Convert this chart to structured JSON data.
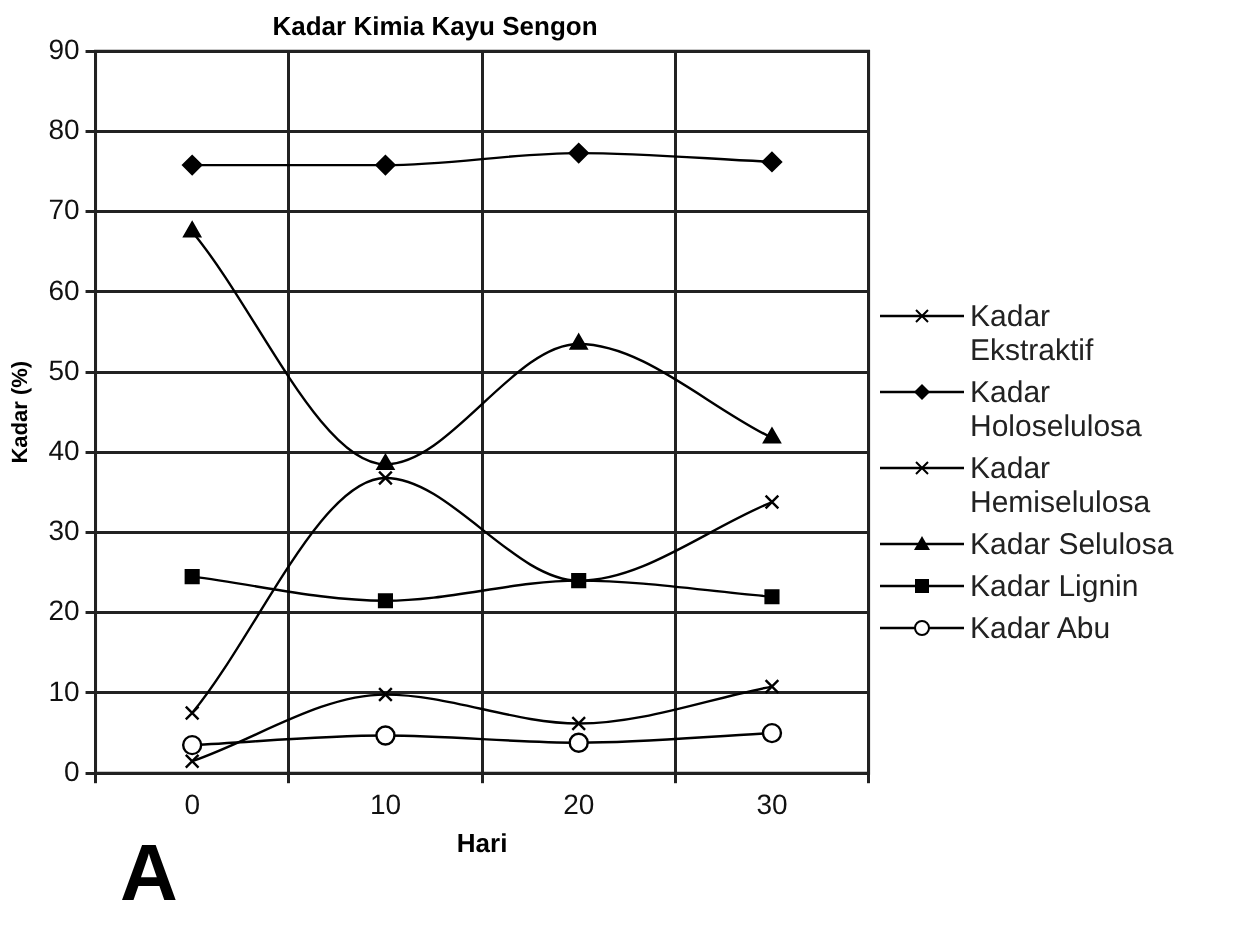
{
  "chart_data": {
    "type": "line",
    "title": "Kadar Kimia Kayu Sengon",
    "xlabel": "Hari",
    "ylabel": "Kadar (%)",
    "categories": [
      "0",
      "10",
      "20",
      "30"
    ],
    "ylim": [
      0,
      90
    ],
    "yticks": [
      0,
      10,
      20,
      30,
      40,
      50,
      60,
      70,
      80,
      90
    ],
    "grid": true,
    "legend": "right",
    "annotations": [
      "A"
    ],
    "series": [
      {
        "name": "Kadar Ekstraktif",
        "color": "#000000",
        "marker": "cross",
        "values": [
          1.5,
          9.8,
          6.2,
          10.8
        ]
      },
      {
        "name": "Kadar Holoselulosa",
        "color": "#000000",
        "marker": "diamond",
        "values": [
          75.8,
          75.8,
          77.3,
          76.2
        ]
      },
      {
        "name": "Kadar Hemiselulosa",
        "color": "#000000",
        "marker": "cross",
        "values": [
          7.5,
          36.8,
          24,
          33.8
        ]
      },
      {
        "name": "Kadar Selulosa",
        "color": "#000000",
        "marker": "triangle",
        "values": [
          67.5,
          38.5,
          53.5,
          41.8
        ]
      },
      {
        "name": "Kadar Lignin",
        "color": "#000000",
        "marker": "square",
        "values": [
          24.5,
          21.5,
          24,
          22
        ]
      },
      {
        "name": "Kadar Abu",
        "color": "#000000",
        "marker": "circle",
        "values": [
          3.5,
          4.7,
          3.8,
          5
        ]
      }
    ]
  }
}
